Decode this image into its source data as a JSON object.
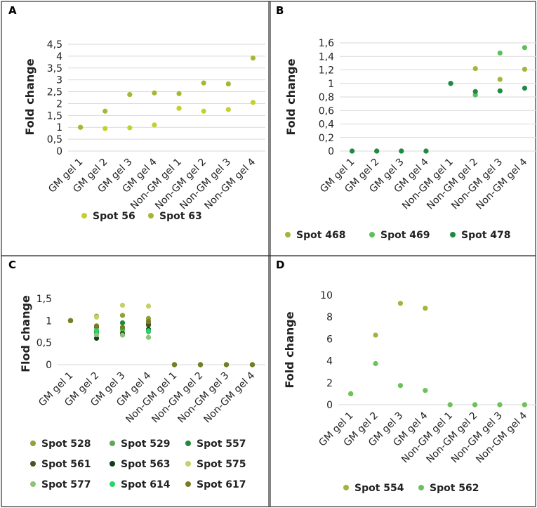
{
  "chart_data": [
    {
      "panel_label": "A",
      "type": "scatter",
      "categories": [
        "GM gel 1",
        "GM gel 2",
        "GM gel 3",
        "GM gel 4",
        "Non-GM gel 1",
        "Non-GM gel 2",
        "Non-GM gel 3",
        "Non-GM gel 4"
      ],
      "ylabel": "Fold change",
      "ylim": [
        0,
        4.5
      ],
      "yticks": [
        "0",
        "0,5",
        "1",
        "1,5",
        "2",
        "2,5",
        "3",
        "3,5",
        "4",
        "4,5"
      ],
      "ytick_values": [
        0,
        0.5,
        1,
        1.5,
        2,
        2.5,
        3,
        3.5,
        4,
        4.5
      ],
      "grid": true,
      "legend_position": "bottom",
      "series": [
        {
          "name": "Spot 56",
          "color": "#c3d12e",
          "values": [
            1.0,
            0.95,
            0.98,
            1.1,
            1.8,
            1.68,
            1.75,
            2.05
          ]
        },
        {
          "name": "Spot 63",
          "color": "#a9b632",
          "values": [
            1.0,
            1.68,
            2.38,
            2.45,
            2.42,
            2.87,
            2.83,
            3.92
          ]
        }
      ]
    },
    {
      "panel_label": "B",
      "type": "scatter",
      "categories": [
        "GM gel 1",
        "GM gel 2",
        "GM gel 3",
        "GM gel 4",
        "Non-GM gel 1",
        "Non-GM gel 2",
        "Non-GM gel 3",
        "Non-GM gel 4"
      ],
      "ylabel": "Fold change",
      "ylim": [
        0,
        1.6
      ],
      "yticks": [
        "0",
        "0,2",
        "0,4",
        "0,6",
        "0,8",
        "1",
        "1,2",
        "1,4",
        "1,6"
      ],
      "ytick_values": [
        0,
        0.2,
        0.4,
        0.6,
        0.8,
        1,
        1.2,
        1.4,
        1.6
      ],
      "grid": true,
      "legend_position": "bottom",
      "series": [
        {
          "name": "Spot 468",
          "color": "#a4b53a",
          "values": [
            0,
            0,
            0,
            0,
            1.0,
            1.22,
            1.06,
            1.21
          ]
        },
        {
          "name": "Spot 469",
          "color": "#5cc05a",
          "values": [
            0,
            0,
            0,
            0,
            1.0,
            0.83,
            1.45,
            1.53
          ]
        },
        {
          "name": "Spot 478",
          "color": "#1e8a46",
          "values": [
            0,
            0,
            0,
            0,
            1.0,
            0.88,
            0.89,
            0.93
          ]
        }
      ]
    },
    {
      "panel_label": "C",
      "type": "scatter",
      "categories": [
        "GM gel 1",
        "GM gel 2",
        "GM gel 3",
        "GM gel 4",
        "Non-GM gel 1",
        "Non-GM gel 2",
        "Non-GM gel 3",
        "Non-GM gel 4"
      ],
      "ylabel": "Flod change",
      "ylim": [
        0,
        1.5
      ],
      "yticks": [
        "0",
        "0,5",
        "1",
        "1,5"
      ],
      "ytick_values": [
        0,
        0.5,
        1,
        1.5
      ],
      "grid": false,
      "legend_position": "bottom",
      "legend_columns": 3,
      "series": [
        {
          "name": "Spot 528",
          "color": "#8fa23a",
          "values": [
            1.0,
            1.1,
            1.12,
            1.05,
            0,
            0,
            0,
            0
          ]
        },
        {
          "name": "Spot 529",
          "color": "#5ea855",
          "values": [
            1.0,
            0.72,
            0.8,
            0.75,
            0,
            0,
            0,
            0
          ]
        },
        {
          "name": "Spot 557",
          "color": "#1f8a3c",
          "values": [
            1.0,
            0.75,
            0.95,
            0.92,
            0,
            0,
            0,
            0
          ]
        },
        {
          "name": "Spot 561",
          "color": "#4a5422",
          "values": [
            1.0,
            0.85,
            0.72,
            0.9,
            0,
            0,
            0,
            0
          ]
        },
        {
          "name": "Spot 563",
          "color": "#0f3d17",
          "values": [
            1.0,
            0.6,
            0.68,
            0.8,
            0,
            0,
            0,
            0
          ]
        },
        {
          "name": "Spot 575",
          "color": "#c7cf66",
          "values": [
            1.0,
            1.08,
            1.35,
            1.33,
            0,
            0,
            0,
            0
          ]
        },
        {
          "name": "Spot 577",
          "color": "#8fc27d",
          "values": [
            1.0,
            0.68,
            0.67,
            0.62,
            0,
            0,
            0,
            0
          ]
        },
        {
          "name": "Spot 614",
          "color": "#28d467",
          "values": [
            1.0,
            0.78,
            0.82,
            0.77,
            0,
            0,
            0,
            0
          ]
        },
        {
          "name": "Spot 617",
          "color": "#7c7a22",
          "values": [
            1.0,
            0.88,
            0.85,
            0.98,
            0,
            0,
            0,
            0
          ]
        }
      ]
    },
    {
      "panel_label": "D",
      "type": "scatter",
      "categories": [
        "GM gel 1",
        "GM gel 2",
        "GM gel 3",
        "GM gel 4",
        "Non-GM gel 1",
        "Non-GM gel 2",
        "Non-GM gel 3",
        "Non-GM gel 4"
      ],
      "ylabel": "Fold change",
      "ylim": [
        0,
        10
      ],
      "yticks": [
        "0",
        "2",
        "4",
        "6",
        "8",
        "10"
      ],
      "ytick_values": [
        0,
        2,
        4,
        6,
        8,
        10
      ],
      "grid": false,
      "legend_position": "bottom",
      "series": [
        {
          "name": "Spot 554",
          "color": "#a3b43c",
          "values": [
            1.0,
            6.35,
            9.25,
            8.8,
            0,
            0,
            0,
            0
          ]
        },
        {
          "name": "Spot 562",
          "color": "#6cc15a",
          "values": [
            1.0,
            3.75,
            1.75,
            1.3,
            0,
            0,
            0,
            0
          ]
        }
      ]
    }
  ]
}
